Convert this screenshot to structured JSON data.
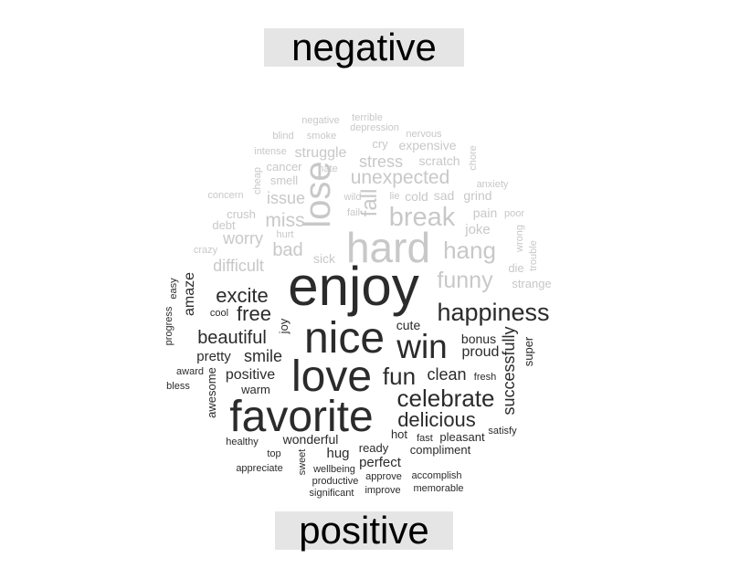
{
  "labels": {
    "negative": "negative",
    "positive": "positive"
  },
  "colors": {
    "negative": "#c8c8c8",
    "positive": "#2b2b2b",
    "label_bg": "#e5e5e5"
  },
  "words": [
    {
      "t": "negative",
      "g": "negative"
    },
    {
      "t": "terrible",
      "g": "negative"
    },
    {
      "t": "blind",
      "g": "negative"
    },
    {
      "t": "smoke",
      "g": "negative"
    },
    {
      "t": "depression",
      "g": "negative"
    },
    {
      "t": "nervous",
      "g": "negative"
    },
    {
      "t": "intense",
      "g": "negative"
    },
    {
      "t": "struggle",
      "g": "negative"
    },
    {
      "t": "cry",
      "g": "negative"
    },
    {
      "t": "expensive",
      "g": "negative"
    },
    {
      "t": "cancer",
      "g": "negative"
    },
    {
      "t": "stress",
      "g": "negative"
    },
    {
      "t": "scratch",
      "g": "negative"
    },
    {
      "t": "cheap",
      "g": "negative"
    },
    {
      "t": "smell",
      "g": "negative"
    },
    {
      "t": "hate",
      "g": "negative"
    },
    {
      "t": "unexpected",
      "g": "negative"
    },
    {
      "t": "chore",
      "g": "negative"
    },
    {
      "t": "concern",
      "g": "negative"
    },
    {
      "t": "issue",
      "g": "negative"
    },
    {
      "t": "lose",
      "g": "negative"
    },
    {
      "t": "wild",
      "g": "negative"
    },
    {
      "t": "lie",
      "g": "negative"
    },
    {
      "t": "cold",
      "g": "negative"
    },
    {
      "t": "sad",
      "g": "negative"
    },
    {
      "t": "grind",
      "g": "negative"
    },
    {
      "t": "anxiety",
      "g": "negative"
    },
    {
      "t": "fail",
      "g": "negative"
    },
    {
      "t": "fall",
      "g": "negative"
    },
    {
      "t": "crush",
      "g": "negative"
    },
    {
      "t": "miss",
      "g": "negative"
    },
    {
      "t": "break",
      "g": "negative"
    },
    {
      "t": "pain",
      "g": "negative"
    },
    {
      "t": "poor",
      "g": "negative"
    },
    {
      "t": "debt",
      "g": "negative"
    },
    {
      "t": "hurt",
      "g": "negative"
    },
    {
      "t": "joke",
      "g": "negative"
    },
    {
      "t": "worry",
      "g": "negative"
    },
    {
      "t": "hard",
      "g": "negative"
    },
    {
      "t": "wrong",
      "g": "negative"
    },
    {
      "t": "crazy",
      "g": "negative"
    },
    {
      "t": "bad",
      "g": "negative"
    },
    {
      "t": "hang",
      "g": "negative"
    },
    {
      "t": "trouble",
      "g": "negative"
    },
    {
      "t": "sick",
      "g": "negative"
    },
    {
      "t": "difficult",
      "g": "negative"
    },
    {
      "t": "die",
      "g": "negative"
    },
    {
      "t": "funny",
      "g": "negative"
    },
    {
      "t": "strange",
      "g": "negative"
    },
    {
      "t": "enjoy",
      "g": "positive"
    },
    {
      "t": "amaze",
      "g": "positive"
    },
    {
      "t": "easy",
      "g": "positive"
    },
    {
      "t": "excite",
      "g": "positive"
    },
    {
      "t": "happiness",
      "g": "positive"
    },
    {
      "t": "free",
      "g": "positive"
    },
    {
      "t": "cool",
      "g": "positive"
    },
    {
      "t": "progress",
      "g": "positive"
    },
    {
      "t": "joy",
      "g": "positive"
    },
    {
      "t": "nice",
      "g": "positive"
    },
    {
      "t": "cute",
      "g": "positive"
    },
    {
      "t": "beautiful",
      "g": "positive"
    },
    {
      "t": "win",
      "g": "positive"
    },
    {
      "t": "bonus",
      "g": "positive"
    },
    {
      "t": "successfully",
      "g": "positive"
    },
    {
      "t": "super",
      "g": "positive"
    },
    {
      "t": "proud",
      "g": "positive"
    },
    {
      "t": "pretty",
      "g": "positive"
    },
    {
      "t": "smile",
      "g": "positive"
    },
    {
      "t": "award",
      "g": "positive"
    },
    {
      "t": "positive",
      "g": "positive"
    },
    {
      "t": "love",
      "g": "positive"
    },
    {
      "t": "fun",
      "g": "positive"
    },
    {
      "t": "clean",
      "g": "positive"
    },
    {
      "t": "fresh",
      "g": "positive"
    },
    {
      "t": "bless",
      "g": "positive"
    },
    {
      "t": "awesome",
      "g": "positive"
    },
    {
      "t": "warm",
      "g": "positive"
    },
    {
      "t": "celebrate",
      "g": "positive"
    },
    {
      "t": "favorite",
      "g": "positive"
    },
    {
      "t": "delicious",
      "g": "positive"
    },
    {
      "t": "satisfy",
      "g": "positive"
    },
    {
      "t": "hot",
      "g": "positive"
    },
    {
      "t": "fast",
      "g": "positive"
    },
    {
      "t": "pleasant",
      "g": "positive"
    },
    {
      "t": "healthy",
      "g": "positive"
    },
    {
      "t": "wonderful",
      "g": "positive"
    },
    {
      "t": "top",
      "g": "positive"
    },
    {
      "t": "hug",
      "g": "positive"
    },
    {
      "t": "ready",
      "g": "positive"
    },
    {
      "t": "compliment",
      "g": "positive"
    },
    {
      "t": "sweet",
      "g": "positive"
    },
    {
      "t": "perfect",
      "g": "positive"
    },
    {
      "t": "appreciate",
      "g": "positive"
    },
    {
      "t": "wellbeing",
      "g": "positive"
    },
    {
      "t": "approve",
      "g": "positive"
    },
    {
      "t": "accomplish",
      "g": "positive"
    },
    {
      "t": "productive",
      "g": "positive"
    },
    {
      "t": "improve",
      "g": "positive"
    },
    {
      "t": "memorable",
      "g": "positive"
    },
    {
      "t": "significant",
      "g": "positive"
    }
  ]
}
